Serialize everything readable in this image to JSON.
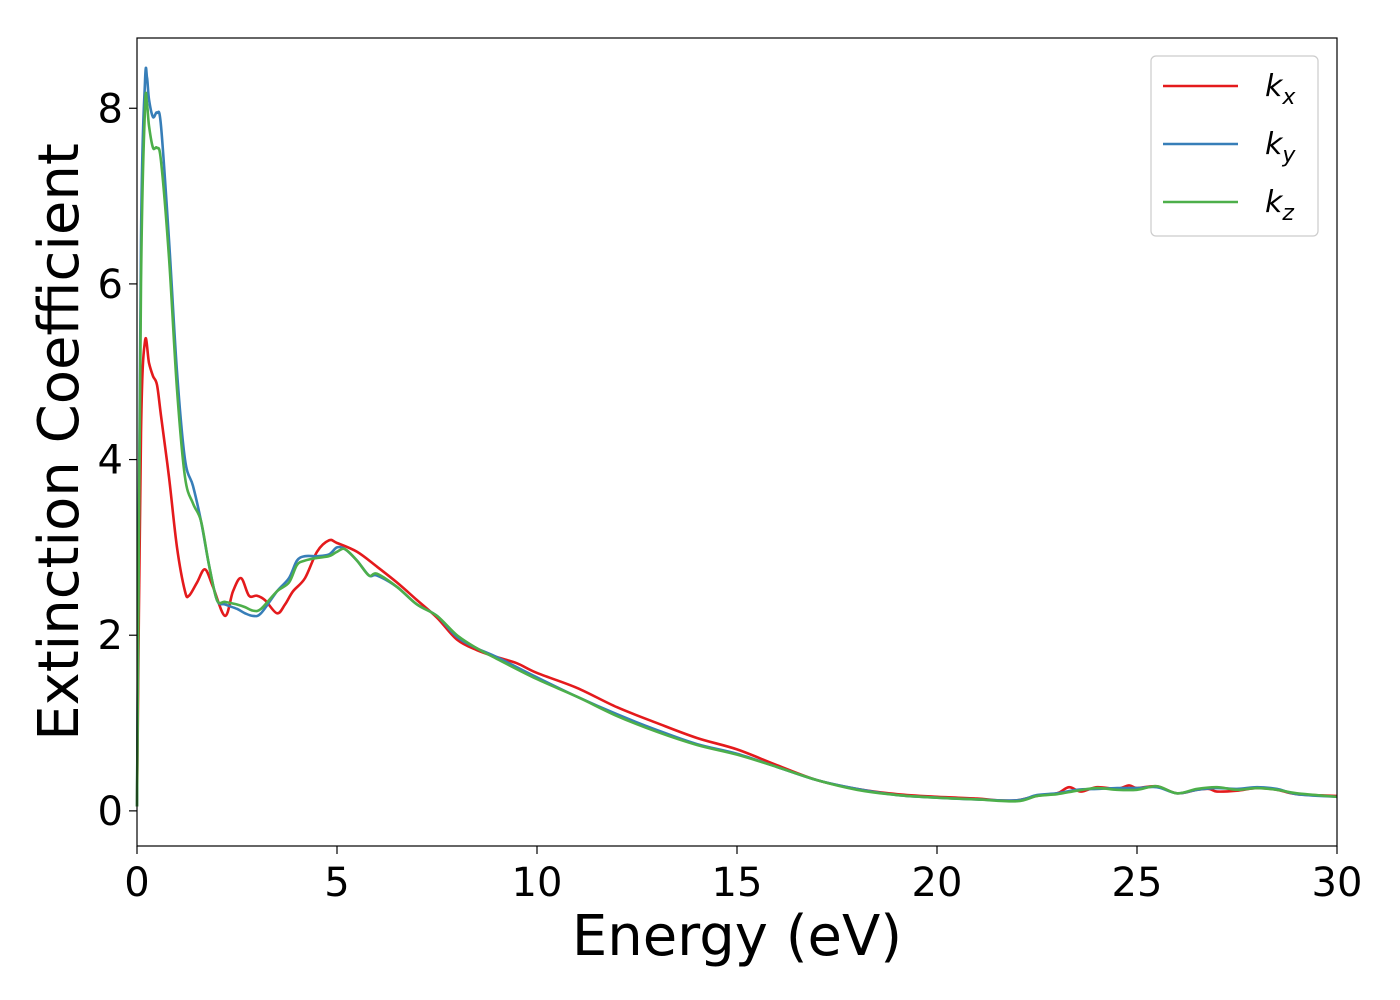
{
  "chart_data": {
    "type": "line",
    "title": "",
    "xlabel": "Energy (eV)",
    "ylabel": "Extinction Coefficient",
    "xlim": [
      0,
      30
    ],
    "ylim": [
      -0.4,
      8.8
    ],
    "xticks": [
      0,
      5,
      10,
      15,
      20,
      25,
      30
    ],
    "yticks": [
      0,
      2,
      4,
      6,
      8
    ],
    "grid": false,
    "legend_position": "top-right",
    "series": [
      {
        "name": "k_x",
        "legend_base": "k",
        "legend_sub": "x",
        "color": "#e41a1c",
        "x": [
          0,
          0.1,
          0.2,
          0.3,
          0.4,
          0.5,
          0.6,
          0.8,
          1.0,
          1.2,
          1.3,
          1.5,
          1.7,
          1.9,
          2.2,
          2.4,
          2.6,
          2.8,
          3.0,
          3.2,
          3.5,
          3.7,
          3.9,
          4.2,
          4.5,
          4.8,
          5.0,
          5.5,
          6.0,
          6.5,
          7.0,
          7.5,
          8.0,
          8.5,
          9.0,
          9.5,
          10.0,
          11.0,
          12.0,
          13.0,
          14.0,
          15.0,
          16.0,
          17.0,
          18.0,
          19.0,
          20.0,
          21.0,
          21.5,
          22.0,
          22.5,
          23.0,
          23.3,
          23.6,
          24.0,
          24.5,
          24.8,
          25.0,
          25.5,
          26.0,
          26.5,
          26.8,
          27.0,
          27.5,
          28.0,
          28.5,
          29.0,
          30.0
        ],
        "y": [
          0.05,
          4.3,
          5.35,
          5.1,
          4.95,
          4.85,
          4.5,
          3.8,
          3.0,
          2.5,
          2.45,
          2.6,
          2.75,
          2.55,
          2.22,
          2.5,
          2.65,
          2.45,
          2.45,
          2.4,
          2.25,
          2.35,
          2.5,
          2.65,
          2.95,
          3.08,
          3.05,
          2.95,
          2.78,
          2.6,
          2.4,
          2.2,
          1.95,
          1.83,
          1.75,
          1.68,
          1.57,
          1.4,
          1.18,
          1.0,
          0.83,
          0.7,
          0.52,
          0.35,
          0.25,
          0.19,
          0.16,
          0.14,
          0.12,
          0.12,
          0.17,
          0.2,
          0.27,
          0.22,
          0.27,
          0.25,
          0.29,
          0.26,
          0.28,
          0.2,
          0.24,
          0.25,
          0.22,
          0.23,
          0.26,
          0.24,
          0.19,
          0.17
        ]
      },
      {
        "name": "k_y",
        "legend_base": "k",
        "legend_sub": "y",
        "color": "#377eb8",
        "x": [
          0,
          0.1,
          0.2,
          0.25,
          0.3,
          0.4,
          0.5,
          0.6,
          0.8,
          1.0,
          1.2,
          1.4,
          1.6,
          1.8,
          2.0,
          2.2,
          2.5,
          2.7,
          2.9,
          3.1,
          3.5,
          3.8,
          4.0,
          4.2,
          4.5,
          4.8,
          5.0,
          5.2,
          5.5,
          5.8,
          6.0,
          6.5,
          7.0,
          7.5,
          8.0,
          8.5,
          9.0,
          10.0,
          11.0,
          12.0,
          13.0,
          14.0,
          15.0,
          16.0,
          17.0,
          18.0,
          19.0,
          20.0,
          21.0,
          22.0,
          22.5,
          23.0,
          23.5,
          24.0,
          24.5,
          25.0,
          25.5,
          26.0,
          26.5,
          27.0,
          27.5,
          28.0,
          28.5,
          29.0,
          30.0
        ],
        "y": [
          0.05,
          6.5,
          8.3,
          8.35,
          8.1,
          7.9,
          7.95,
          7.8,
          6.5,
          5.0,
          4.0,
          3.7,
          3.3,
          2.8,
          2.4,
          2.35,
          2.3,
          2.25,
          2.22,
          2.25,
          2.5,
          2.65,
          2.85,
          2.9,
          2.9,
          2.92,
          3.0,
          2.98,
          2.85,
          2.68,
          2.68,
          2.55,
          2.35,
          2.22,
          1.98,
          1.85,
          1.75,
          1.52,
          1.3,
          1.1,
          0.92,
          0.76,
          0.65,
          0.5,
          0.35,
          0.25,
          0.18,
          0.15,
          0.13,
          0.12,
          0.18,
          0.2,
          0.24,
          0.25,
          0.26,
          0.26,
          0.27,
          0.2,
          0.24,
          0.26,
          0.25,
          0.27,
          0.25,
          0.19,
          0.16
        ]
      },
      {
        "name": "k_z",
        "legend_base": "k",
        "legend_sub": "z",
        "color": "#4daf4a",
        "x": [
          0,
          0.1,
          0.2,
          0.25,
          0.3,
          0.4,
          0.5,
          0.6,
          0.8,
          1.0,
          1.2,
          1.4,
          1.6,
          1.8,
          2.0,
          2.2,
          2.5,
          2.7,
          2.9,
          3.1,
          3.5,
          3.8,
          4.0,
          4.2,
          4.5,
          4.8,
          5.0,
          5.2,
          5.5,
          5.8,
          6.0,
          6.5,
          7.0,
          7.5,
          8.0,
          8.5,
          9.0,
          10.0,
          11.0,
          12.0,
          13.0,
          14.0,
          15.0,
          16.0,
          17.0,
          18.0,
          19.0,
          20.0,
          21.0,
          22.0,
          22.5,
          23.0,
          23.5,
          24.0,
          24.5,
          25.0,
          25.5,
          26.0,
          26.5,
          27.0,
          27.5,
          28.0,
          28.5,
          29.0,
          30.0
        ],
        "y": [
          0.05,
          6.0,
          8.0,
          8.05,
          7.8,
          7.55,
          7.55,
          7.4,
          6.3,
          4.8,
          3.8,
          3.5,
          3.3,
          2.8,
          2.4,
          2.38,
          2.35,
          2.32,
          2.28,
          2.3,
          2.5,
          2.6,
          2.8,
          2.85,
          2.88,
          2.9,
          2.95,
          2.98,
          2.85,
          2.68,
          2.7,
          2.55,
          2.35,
          2.22,
          2.0,
          1.85,
          1.73,
          1.5,
          1.3,
          1.08,
          0.9,
          0.75,
          0.64,
          0.5,
          0.35,
          0.24,
          0.18,
          0.15,
          0.13,
          0.11,
          0.17,
          0.19,
          0.23,
          0.26,
          0.24,
          0.24,
          0.28,
          0.2,
          0.25,
          0.27,
          0.24,
          0.26,
          0.24,
          0.2,
          0.16
        ]
      }
    ]
  }
}
